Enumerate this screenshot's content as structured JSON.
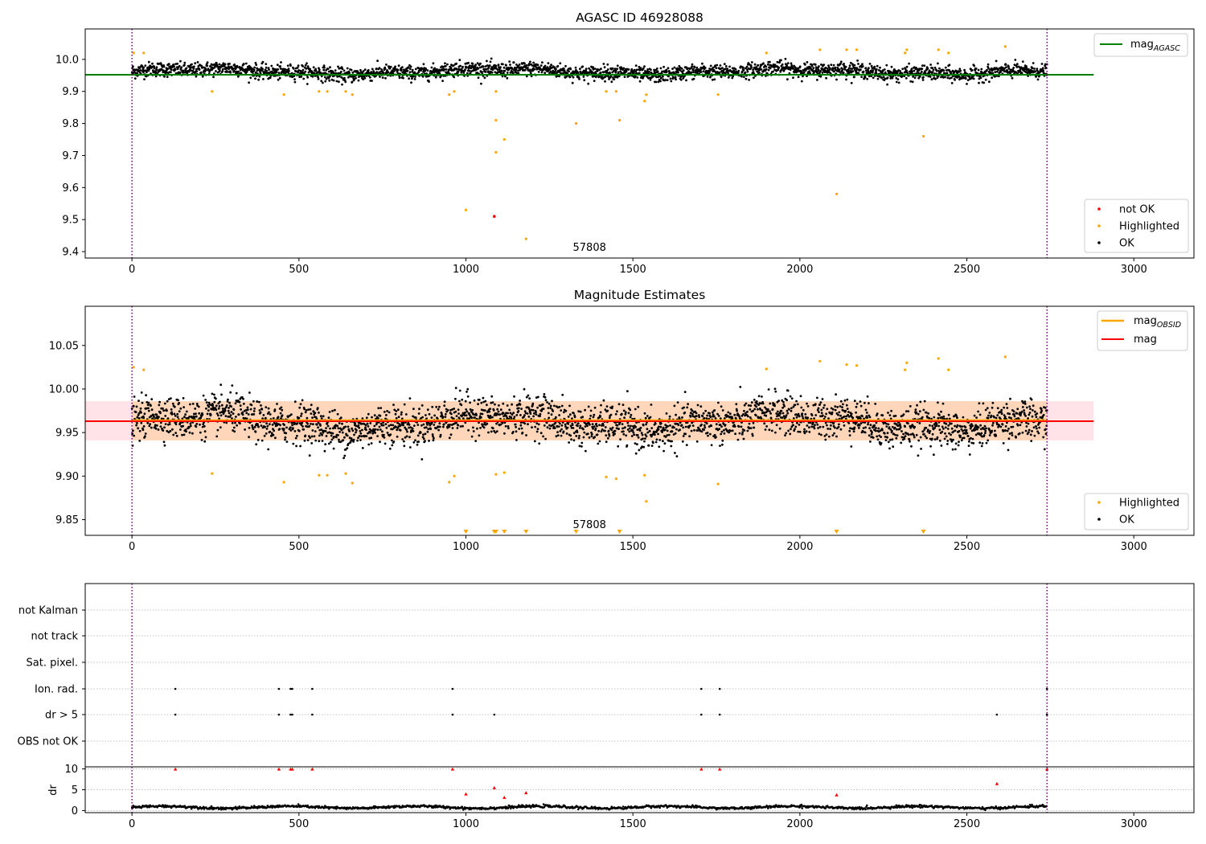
{
  "chart_data": [
    {
      "type": "scatter",
      "title": "AGASC ID 46928088",
      "xlim": [
        -140,
        3180
      ],
      "ylim": [
        9.38,
        10.095
      ],
      "xticks": [
        0,
        500,
        1000,
        1500,
        2000,
        2500,
        3000
      ],
      "yticks": [
        9.4,
        9.5,
        9.6,
        9.7,
        9.8,
        9.9,
        10.0
      ],
      "ytick_labels": [
        "9.4",
        "9.5",
        "9.6",
        "9.7",
        "9.8",
        "9.9",
        "10.0"
      ],
      "obsid_label": "57808",
      "obs_boundaries": [
        0,
        2740
      ],
      "lines": [
        {
          "name": "mag_AGASC",
          "y": 9.952,
          "x": [
            -140,
            2880
          ],
          "color": "#008000"
        }
      ],
      "ok_series": {
        "name": "OK",
        "color": "#000000",
        "n_points": 2740,
        "x_range": [
          0,
          2740
        ],
        "y_center": 9.962,
        "y_spread": 0.025
      },
      "not_ok": {
        "name": "not OK",
        "color": "#ff0000",
        "points": [
          [
            1085,
            9.51
          ]
        ]
      },
      "highlighted": {
        "name": "Highlighted",
        "color": "#ffa500",
        "points": [
          [
            5,
            10.02
          ],
          [
            35,
            10.02
          ],
          [
            240,
            9.9
          ],
          [
            455,
            9.89
          ],
          [
            560,
            9.9
          ],
          [
            585,
            9.9
          ],
          [
            640,
            9.9
          ],
          [
            660,
            9.89
          ],
          [
            950,
            9.89
          ],
          [
            965,
            9.9
          ],
          [
            1000,
            9.53
          ],
          [
            1090,
            9.81
          ],
          [
            1090,
            9.71
          ],
          [
            1090,
            9.9
          ],
          [
            1115,
            9.75
          ],
          [
            1180,
            9.44
          ],
          [
            1330,
            9.8
          ],
          [
            1420,
            9.9
          ],
          [
            1450,
            9.9
          ],
          [
            1460,
            9.81
          ],
          [
            1535,
            9.87
          ],
          [
            1540,
            9.89
          ],
          [
            1755,
            9.89
          ],
          [
            1900,
            10.02
          ],
          [
            2060,
            10.03
          ],
          [
            2110,
            9.58
          ],
          [
            2140,
            10.03
          ],
          [
            2170,
            10.03
          ],
          [
            2315,
            10.02
          ],
          [
            2320,
            10.03
          ],
          [
            2370,
            9.76
          ],
          [
            2415,
            10.03
          ],
          [
            2445,
            10.02
          ],
          [
            2615,
            10.04
          ]
        ]
      },
      "legend": {
        "upper_right": [
          "mag_AGASC"
        ],
        "lower_right": [
          "not OK",
          "Highlighted",
          "OK"
        ]
      }
    },
    {
      "type": "scatter",
      "title": "Magnitude Estimates",
      "xlim": [
        -140,
        3180
      ],
      "ylim": [
        9.832,
        10.095
      ],
      "xticks": [
        0,
        500,
        1000,
        1500,
        2000,
        2500,
        3000
      ],
      "yticks": [
        9.85,
        9.9,
        9.95,
        10.0,
        10.05
      ],
      "ytick_labels": [
        "9.85",
        "9.90",
        "9.95",
        "10.00",
        "10.05"
      ],
      "obsid_label": "57808",
      "obs_boundaries": [
        0,
        2740
      ],
      "lines": [
        {
          "name": "mag",
          "y": 9.963,
          "x": [
            -140,
            2880
          ],
          "color": "#ff0000"
        },
        {
          "name": "mag_OBSID",
          "y": 9.963,
          "x": [
            0,
            2740
          ],
          "color": "#ffa500"
        }
      ],
      "bands": [
        {
          "name": "mag band",
          "y_range": [
            9.941,
            9.986
          ],
          "x": [
            -140,
            2880
          ],
          "color": "#ffc0cb"
        },
        {
          "name": "mag_OBSID band",
          "y_range": [
            9.941,
            9.986
          ],
          "x": [
            0,
            2740
          ],
          "color": "#ffa500"
        }
      ],
      "ok_series": {
        "name": "OK",
        "color": "#000000",
        "n_points": 2740,
        "x_range": [
          0,
          2740
        ],
        "y_center": 9.962,
        "y_spread": 0.025
      },
      "highlighted": {
        "name": "Highlighted",
        "color": "#ffa500",
        "points": [
          [
            5,
            10.025
          ],
          [
            35,
            10.022
          ],
          [
            240,
            9.903
          ],
          [
            455,
            9.893
          ],
          [
            560,
            9.901
          ],
          [
            585,
            9.901
          ],
          [
            640,
            9.903
          ],
          [
            660,
            9.892
          ],
          [
            950,
            9.893
          ],
          [
            965,
            9.9
          ],
          [
            1090,
            9.902
          ],
          [
            1115,
            9.904
          ],
          [
            1420,
            9.899
          ],
          [
            1450,
            9.897
          ],
          [
            1535,
            9.901
          ],
          [
            1540,
            9.871
          ],
          [
            1755,
            9.891
          ],
          [
            1900,
            10.023
          ],
          [
            2060,
            10.032
          ],
          [
            2140,
            10.028
          ],
          [
            2170,
            10.027
          ],
          [
            2315,
            10.022
          ],
          [
            2320,
            10.03
          ],
          [
            2415,
            10.035
          ],
          [
            2445,
            10.022
          ],
          [
            2615,
            10.037
          ]
        ]
      },
      "off_scale_below": [
        1000,
        1085,
        1090,
        1115,
        1180,
        1330,
        1460,
        2110,
        2370
      ],
      "legend": {
        "upper_right": [
          "mag_OBSID",
          "mag"
        ],
        "lower_right": [
          "Highlighted",
          "OK"
        ]
      }
    },
    {
      "type": "scatter",
      "title": "",
      "xlim": [
        -140,
        3180
      ],
      "categories": [
        "not Kalman",
        "not track",
        "Sat. pixel.",
        "Ion. rad.",
        "dr > 5",
        "OBS not OK"
      ],
      "obs_boundaries": [
        0,
        2740
      ],
      "flags": {
        "Ion. rad.": [
          130,
          440,
          475,
          480,
          540,
          960,
          1705,
          1760,
          2740
        ],
        "dr > 5": [
          130,
          440,
          475,
          480,
          540,
          960,
          1085,
          1705,
          1760,
          2590,
          2740
        ]
      }
    },
    {
      "type": "scatter",
      "title": "",
      "ylabel": "dr",
      "xlim": [
        -140,
        3180
      ],
      "ylim": [
        -0.5,
        10.5
      ],
      "xticks": [
        0,
        500,
        1000,
        1500,
        2000,
        2500,
        3000
      ],
      "yticks": [
        0,
        5,
        10
      ],
      "ytick_labels": [
        "0",
        "5",
        "10"
      ],
      "obs_boundaries": [
        0,
        2740
      ],
      "ok_series": {
        "name": "dr",
        "color": "#000000",
        "n_points": 2740,
        "x_range": [
          0,
          2740
        ],
        "y_center": 0.8,
        "y_spread": 0.3
      },
      "large_dr": {
        "color": "#ff0000",
        "points": [
          [
            130,
            10
          ],
          [
            440,
            10
          ],
          [
            475,
            10
          ],
          [
            480,
            10
          ],
          [
            540,
            10
          ],
          [
            960,
            10
          ],
          [
            1000,
            4
          ],
          [
            1085,
            5.5
          ],
          [
            1115,
            3.2
          ],
          [
            1180,
            4.3
          ],
          [
            1705,
            10
          ],
          [
            1760,
            10
          ],
          [
            2110,
            3.8
          ],
          [
            2590,
            6.5
          ],
          [
            2740,
            10
          ]
        ]
      }
    }
  ]
}
